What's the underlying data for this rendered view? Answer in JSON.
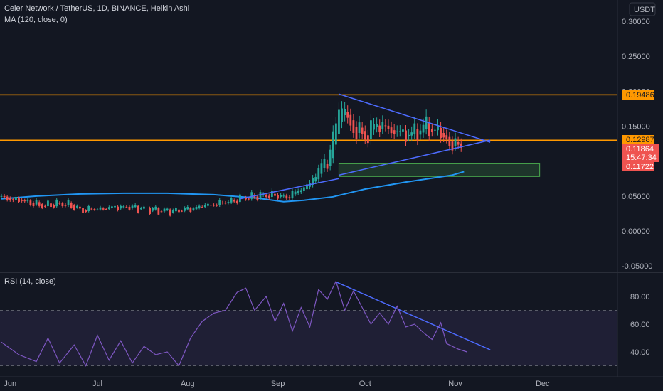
{
  "header": {
    "title": "Celer Network / TetherUS, 1D, BINANCE, Heikin Ashi",
    "ma_label": "MA (120, close, 0)",
    "currency": "USDT"
  },
  "rsi_header": {
    "label": "RSI (14, close)"
  },
  "price_badges": {
    "resistance_high": "0.19486",
    "resistance_low": "0.12987",
    "last_price": "0.11864",
    "countdown": "15:47:34",
    "ma_value": "0.11722"
  },
  "colors": {
    "background": "#131722",
    "bull": "#26a69a",
    "bear": "#ef5350",
    "level": "#ff9800",
    "trendline": "#4d6bff",
    "ma": "#2196f3",
    "rsi": "#7e57c2",
    "zone": "#4caf50"
  },
  "chart_data": [
    {
      "type": "candlestick",
      "title": "Celer Network / TetherUS, 1D, BINANCE, Heikin Ashi",
      "ylabel": "USDT",
      "x_ticks": [
        "Jun",
        "Jul",
        "Aug",
        "Sep",
        "Oct",
        "Nov",
        "Dec"
      ],
      "y_ticks": [
        "0.30000",
        "0.25000",
        "0.20000",
        "0.15000",
        "0.10000",
        "0.05000",
        "0.00000",
        "-0.05000"
      ],
      "ylim": [
        -0.055,
        0.33
      ],
      "legend": "top-left",
      "horizontal_levels": [
        0.19486,
        0.12987
      ],
      "last_price": 0.11864,
      "ma_value": 0.11722,
      "trendlines": [
        {
          "name": "upper",
          "from": [
            "2021-09-22",
            0.196
          ],
          "to": [
            "2021-11-13",
            0.127
          ]
        },
        {
          "name": "lower",
          "from": [
            "2021-09-22",
            0.08
          ],
          "to": [
            "2021-11-13",
            0.13
          ]
        },
        {
          "name": "base",
          "from": [
            "2021-08-19",
            0.046
          ],
          "to": [
            "2021-09-22",
            0.075
          ]
        }
      ],
      "zone": {
        "x": [
          "2021-09-22",
          "2021-11-30"
        ],
        "y": [
          0.078,
          0.097
        ]
      },
      "series": [
        {
          "name": "MA (120, close, 0)",
          "x": [
            "2021-05-29",
            "2021-06-10",
            "2021-06-25",
            "2021-07-10",
            "2021-07-25",
            "2021-08-10",
            "2021-08-25",
            "2021-09-03",
            "2021-09-10",
            "2021-09-20",
            "2021-10-01",
            "2021-10-15",
            "2021-10-31",
            "2021-11-04"
          ],
          "values": [
            0.046,
            0.05,
            0.053,
            0.054,
            0.054,
            0.052,
            0.047,
            0.042,
            0.044,
            0.049,
            0.06,
            0.07,
            0.08,
            0.085
          ]
        },
        {
          "name": "Heikin Ashi close",
          "x": [
            "2021-05-29",
            "2021-06-05",
            "2021-06-12",
            "2021-06-19",
            "2021-06-26",
            "2021-07-03",
            "2021-07-10",
            "2021-07-17",
            "2021-07-24",
            "2021-07-31",
            "2021-08-07",
            "2021-08-14",
            "2021-08-21",
            "2021-08-28",
            "2021-09-04",
            "2021-09-08",
            "2021-09-12",
            "2021-09-16",
            "2021-09-19",
            "2021-09-21",
            "2021-09-23",
            "2021-09-25",
            "2021-09-27",
            "2021-10-01",
            "2021-10-05",
            "2021-10-09",
            "2021-10-13",
            "2021-10-17",
            "2021-10-21",
            "2021-10-25",
            "2021-10-27",
            "2021-10-30",
            "2021-11-03"
          ],
          "values": [
            0.047,
            0.043,
            0.036,
            0.04,
            0.03,
            0.033,
            0.035,
            0.032,
            0.028,
            0.03,
            0.036,
            0.041,
            0.048,
            0.052,
            0.049,
            0.058,
            0.068,
            0.095,
            0.11,
            0.15,
            0.175,
            0.165,
            0.145,
            0.135,
            0.155,
            0.145,
            0.14,
            0.138,
            0.15,
            0.145,
            0.135,
            0.124,
            0.119
          ]
        }
      ]
    },
    {
      "type": "line",
      "title": "RSI (14, close)",
      "y_ticks": [
        "80.00",
        "60.00",
        "40.00"
      ],
      "ylim": [
        20,
        100
      ],
      "bands": [
        30,
        50,
        70
      ],
      "trendlines": [
        {
          "name": "rsi-down",
          "from": [
            "2021-09-21",
            90.5
          ],
          "to": [
            "2021-11-13",
            41.5
          ]
        }
      ],
      "series": [
        {
          "name": "RSI (14, close)",
          "x": [
            "2021-05-29",
            "2021-06-04",
            "2021-06-10",
            "2021-06-14",
            "2021-06-18",
            "2021-06-23",
            "2021-06-27",
            "2021-07-01",
            "2021-07-05",
            "2021-07-09",
            "2021-07-13",
            "2021-07-17",
            "2021-07-21",
            "2021-07-25",
            "2021-07-29",
            "2021-08-02",
            "2021-08-06",
            "2021-08-10",
            "2021-08-14",
            "2021-08-18",
            "2021-08-21",
            "2021-08-24",
            "2021-08-28",
            "2021-08-31",
            "2021-09-03",
            "2021-09-06",
            "2021-09-09",
            "2021-09-12",
            "2021-09-15",
            "2021-09-18",
            "2021-09-21",
            "2021-09-24",
            "2021-09-27",
            "2021-09-30",
            "2021-10-03",
            "2021-10-06",
            "2021-10-09",
            "2021-10-12",
            "2021-10-15",
            "2021-10-18",
            "2021-10-21",
            "2021-10-24",
            "2021-10-27",
            "2021-10-29",
            "2021-11-02",
            "2021-11-05"
          ],
          "values": [
            47,
            38,
            33,
            50,
            32,
            45,
            30,
            52,
            34,
            48,
            32,
            44,
            38,
            40,
            30,
            50,
            62,
            68,
            70,
            83,
            86,
            70,
            80,
            62,
            75,
            55,
            72,
            58,
            85,
            78,
            91,
            70,
            84,
            72,
            60,
            68,
            60,
            73,
            58,
            60,
            54,
            49,
            61,
            46,
            42,
            40
          ]
        }
      ]
    }
  ]
}
